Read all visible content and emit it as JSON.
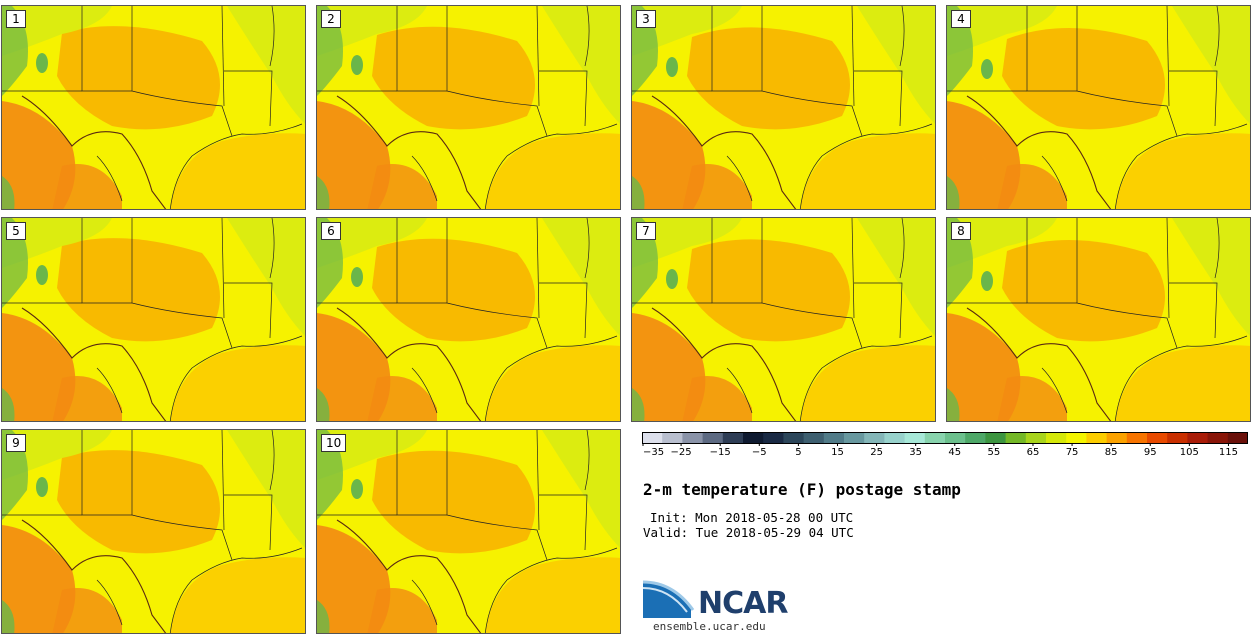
{
  "chart_data": {
    "type": "heatmap",
    "title": "2-m temperature (F) postage stamp",
    "init": "Init: Mon 2018-05-28 00 UTC",
    "valid": "Valid: Tue 2018-05-29 04 UTC",
    "members": [
      "1",
      "2",
      "3",
      "4",
      "5",
      "6",
      "7",
      "8",
      "9",
      "10"
    ],
    "colorbar": {
      "min": -35,
      "max": 120,
      "step": 5,
      "tick_labels": [
        "−35",
        "−25",
        "−15",
        "−5",
        "5",
        "15",
        "25",
        "35",
        "45",
        "55",
        "65",
        "75",
        "85",
        "95",
        "105",
        "115"
      ],
      "tick_values": [
        -35,
        -25,
        -15,
        -5,
        5,
        15,
        25,
        35,
        45,
        55,
        65,
        75,
        85,
        95,
        105,
        115
      ],
      "colors": [
        "#dde0ec",
        "#b9bfcf",
        "#8a93a8",
        "#5d6a82",
        "#2e3d55",
        "#0f1a30",
        "#1a2a44",
        "#2c465a",
        "#3e5f70",
        "#517b88",
        "#68989f",
        "#84b6b8",
        "#98d2cc",
        "#a7e8d8",
        "#88d3ad",
        "#6cc08d",
        "#4ea868",
        "#3c9540",
        "#74b827",
        "#a8d41c",
        "#d5e80a",
        "#f4f500",
        "#fccd00",
        "#fba200",
        "#f77400",
        "#e84a00",
        "#c92f00",
        "#a91c08",
        "#891508",
        "#6a100a"
      ]
    }
  },
  "colors": {
    "base_yellow": "#f6f200",
    "warm_orange": "#f8b000",
    "hot_orange": "#f38a12",
    "lime": "#dcec10",
    "green": "#6ab64a",
    "gulf": "#fbd000",
    "boundary": "#222222"
  },
  "logo": {
    "text": "NCAR",
    "site": "ensemble.ucar.edu"
  }
}
